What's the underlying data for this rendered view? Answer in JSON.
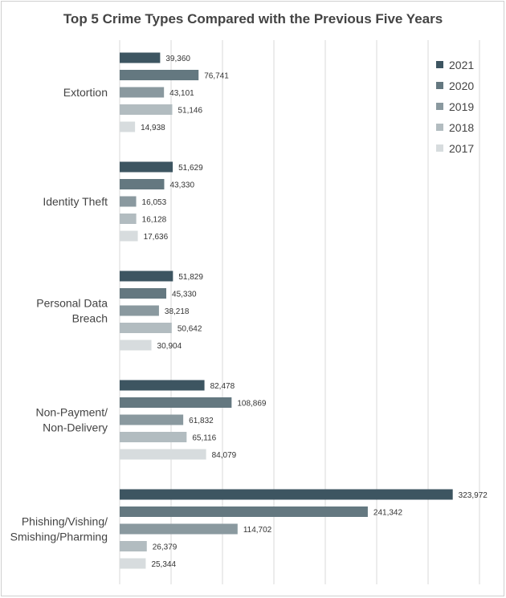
{
  "chart_data": {
    "type": "bar",
    "orientation": "horizontal",
    "title": "Top 5 Crime Types Compared with the Previous Five Years",
    "categories": [
      [
        "Extortion"
      ],
      [
        "Identity Theft"
      ],
      [
        "Personal Data",
        "Breach"
      ],
      [
        "Non-Payment/",
        "Non-Delivery"
      ],
      [
        "Phishing/Vishing/",
        "Smishing/Pharming"
      ]
    ],
    "series": [
      {
        "name": "2021",
        "color": "#3d5561",
        "values": [
          39360,
          51629,
          51829,
          82478,
          323972
        ],
        "labels": [
          "39,360",
          "51,629",
          "51,829",
          "82,478",
          "323,972"
        ]
      },
      {
        "name": "2020",
        "color": "#647880",
        "values": [
          76741,
          43330,
          45330,
          108869,
          241342
        ],
        "labels": [
          "76,741",
          "43,330",
          "45,330",
          "108,869",
          "241,342"
        ]
      },
      {
        "name": "2019",
        "color": "#8a999f",
        "values": [
          43101,
          16053,
          38218,
          61832,
          114702
        ],
        "labels": [
          "43,101",
          "16,053",
          "38,218",
          "61,832",
          "114,702"
        ]
      },
      {
        "name": "2018",
        "color": "#b2bcc0",
        "values": [
          51146,
          16128,
          50642,
          65116,
          26379
        ],
        "labels": [
          "51,146",
          "16,128",
          "50,642",
          "65,116",
          "26,379"
        ]
      },
      {
        "name": "2017",
        "color": "#d7dcde",
        "values": [
          14938,
          17636,
          30904,
          84079,
          25344
        ],
        "labels": [
          "14,938",
          "17,636",
          "30,904",
          "84,079",
          "25,344"
        ]
      }
    ],
    "xlim": [
      0,
      350000
    ],
    "grid": true,
    "legend_position": "top-right"
  }
}
